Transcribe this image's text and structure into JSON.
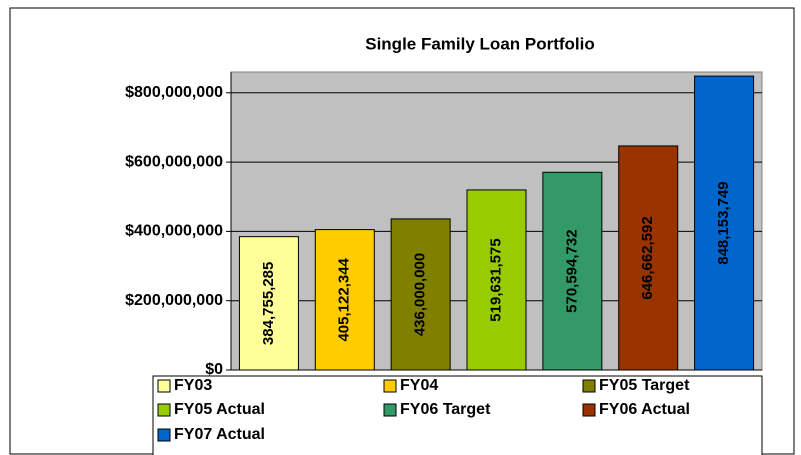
{
  "chart_data": {
    "type": "bar",
    "title": "Single Family Loan Portfolio",
    "series": [
      {
        "name": "FY03",
        "color": "#ffff99",
        "values": [
          384755285
        ],
        "value_labels": [
          "384,755,285"
        ]
      },
      {
        "name": "FY04",
        "color": "#ffcc00",
        "values": [
          405122344
        ],
        "value_labels": [
          "405,122,344"
        ]
      },
      {
        "name": "FY05 Target",
        "color": "#808000",
        "values": [
          436000000
        ],
        "value_labels": [
          "436,000,000"
        ]
      },
      {
        "name": "FY05 Actual",
        "color": "#99cc00",
        "values": [
          519631575
        ],
        "value_labels": [
          "519,631,575"
        ]
      },
      {
        "name": "FY06 Target",
        "color": "#339966",
        "values": [
          570594732
        ],
        "value_labels": [
          "570,594,732"
        ]
      },
      {
        "name": "FY06 Actual",
        "color": "#993300",
        "values": [
          646662592
        ],
        "value_labels": [
          "646,662,592"
        ]
      },
      {
        "name": "FY07 Actual",
        "color": "#0066cc",
        "values": [
          848153749
        ],
        "value_labels": [
          "848,153,749"
        ]
      }
    ],
    "ylim": [
      0,
      860000000
    ],
    "yticks": [
      {
        "value": 0,
        "label": "$0"
      },
      {
        "value": 200000000,
        "label": "$200,000,000"
      },
      {
        "value": 400000000,
        "label": "$400,000,000"
      },
      {
        "value": 600000000,
        "label": "$600,000,000"
      },
      {
        "value": 800000000,
        "label": "$800,000,000"
      }
    ],
    "grid": true,
    "plot_background": "#c0c0c0",
    "legend": "bottom"
  }
}
